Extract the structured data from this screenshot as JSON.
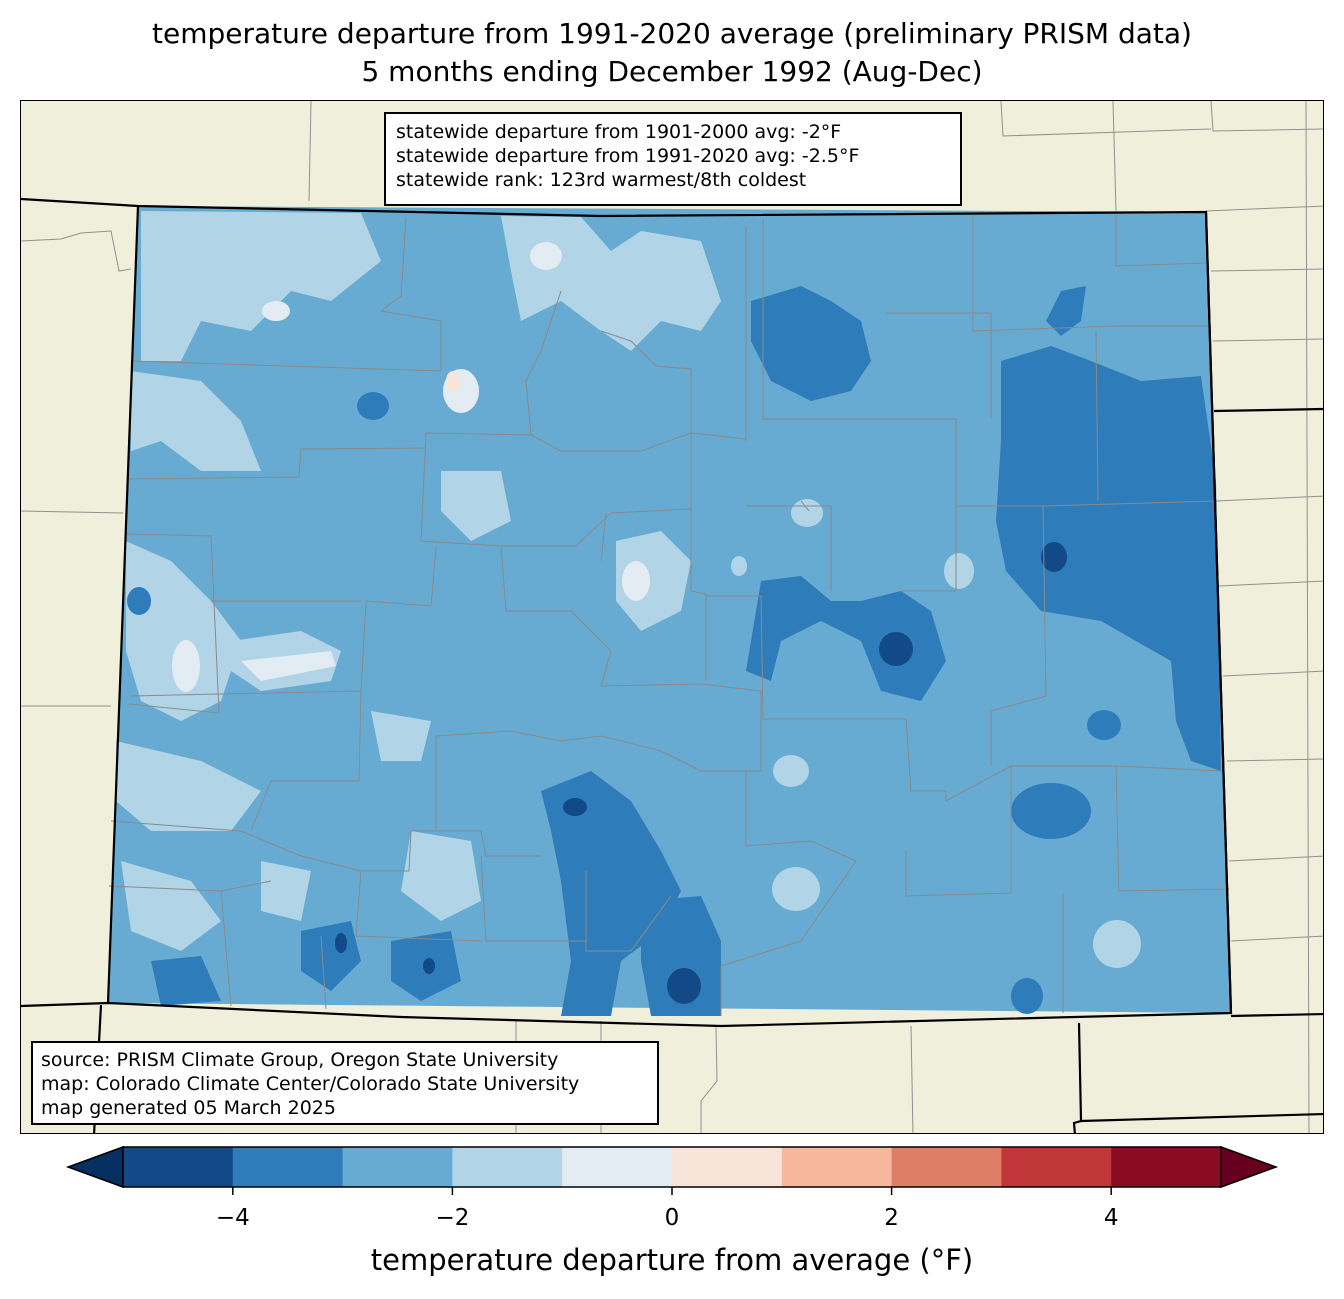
{
  "title_line1": "temperature departure from 1991-2020 average (preliminary PRISM data)",
  "title_line2": "5 months ending December 1992 (Aug-Dec)",
  "stats": {
    "line1": "statewide departure from 1901-2000 avg: -2°F",
    "line2": "statewide departure from 1991-2020 avg: -2.5°F",
    "line3": "statewide rank: 123rd warmest/8th coldest"
  },
  "source": {
    "line1": "source: PRISM Climate Group, Oregon State University",
    "line2": "map: Colorado Climate Center/Colorado State University",
    "line3": "map generated 05 March 2025"
  },
  "colorbar": {
    "label": "temperature departure from average (°F)",
    "bins": [
      -5,
      -4,
      -3,
      -2,
      -1,
      0,
      1,
      2,
      3,
      4,
      5
    ],
    "colors": [
      "#124a87",
      "#2f7cba",
      "#68abd2",
      "#b1d4e7",
      "#e3ecf3",
      "#f9e4da",
      "#f6b79b",
      "#e07d66",
      "#c13639",
      "#8a0b24"
    ],
    "under_color": "#053061",
    "over_color": "#67001f",
    "ticks": [
      -4,
      -2,
      0,
      2,
      4
    ],
    "tick_labels": [
      "−4",
      "−2",
      "0",
      "2",
      "4"
    ]
  },
  "colors": {
    "land": "#f0efdc",
    "boundary": "#808080"
  }
}
